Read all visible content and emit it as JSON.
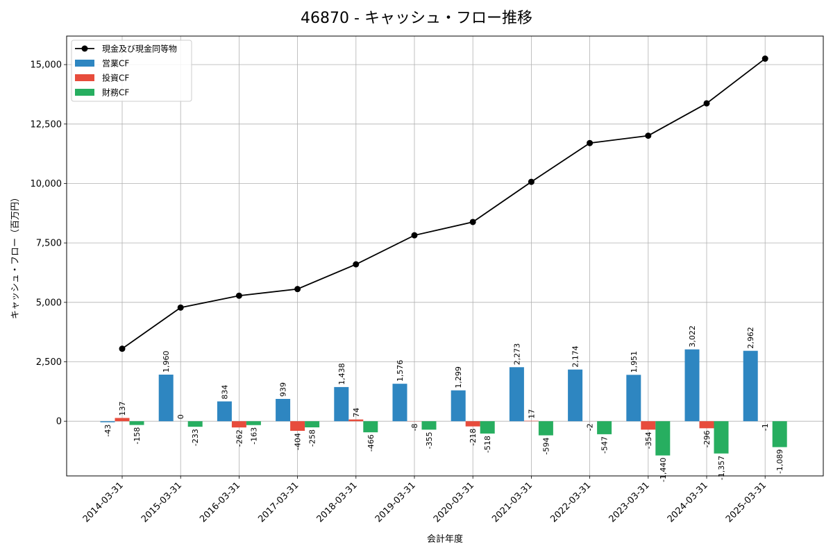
{
  "chart_data": {
    "type": "bar",
    "title": "46870 - キャッシュ・フロー推移",
    "xlabel": "会計年度",
    "ylabel": "キャッシュ・フロー（百万円）",
    "categories": [
      "2014-03-31",
      "2015-03-31",
      "2016-03-31",
      "2017-03-31",
      "2018-03-31",
      "2019-03-31",
      "2020-03-31",
      "2021-03-31",
      "2022-03-31",
      "2023-03-31",
      "2024-03-31",
      "2025-03-31"
    ],
    "ylim": [
      -2300,
      16200
    ],
    "yticks": [
      0,
      2500,
      5000,
      7500,
      10000,
      12500,
      15000
    ],
    "ytick_labels": [
      "0",
      "2,500",
      "5,000",
      "7,500",
      "10,000",
      "12,500",
      "15,000"
    ],
    "grid": true,
    "legend_position": "top-left",
    "series": [
      {
        "name": "営業CF",
        "kind": "bar",
        "color": "#2e86c1",
        "values": [
          -43,
          1960,
          834,
          939,
          1438,
          1576,
          1299,
          2273,
          2174,
          1951,
          3022,
          2962
        ],
        "labels": [
          "-43",
          "1,960",
          "834",
          "939",
          "1,438",
          "1,576",
          "1,299",
          "2,273",
          "2,174",
          "1,951",
          "3,022",
          "2,962"
        ]
      },
      {
        "name": "投資CF",
        "kind": "bar",
        "color": "#e74c3c",
        "values": [
          137,
          0,
          -262,
          -404,
          74,
          -8,
          -218,
          17,
          -2,
          -354,
          -296,
          -1
        ],
        "labels": [
          "137",
          "0",
          "-262",
          "-404",
          "74",
          "-8",
          "-218",
          "17",
          "-2",
          "-354",
          "-296",
          "-1"
        ]
      },
      {
        "name": "財務CF",
        "kind": "bar",
        "color": "#27ae60",
        "values": [
          -158,
          -233,
          -163,
          -258,
          -466,
          -355,
          -518,
          -594,
          -547,
          -1440,
          -1357,
          -1089
        ],
        "labels": [
          "-158",
          "-233",
          "-163",
          "-258",
          "-466",
          "-355",
          "-518",
          "-594",
          "-547",
          "-1,440",
          "-1,357",
          "-1,089"
        ]
      },
      {
        "name": "現金及び現金同等物",
        "kind": "line",
        "color": "#000000",
        "values": [
          3050,
          4780,
          5280,
          5560,
          6600,
          7820,
          8380,
          10070,
          11700,
          12010,
          13370,
          15250
        ]
      }
    ]
  }
}
